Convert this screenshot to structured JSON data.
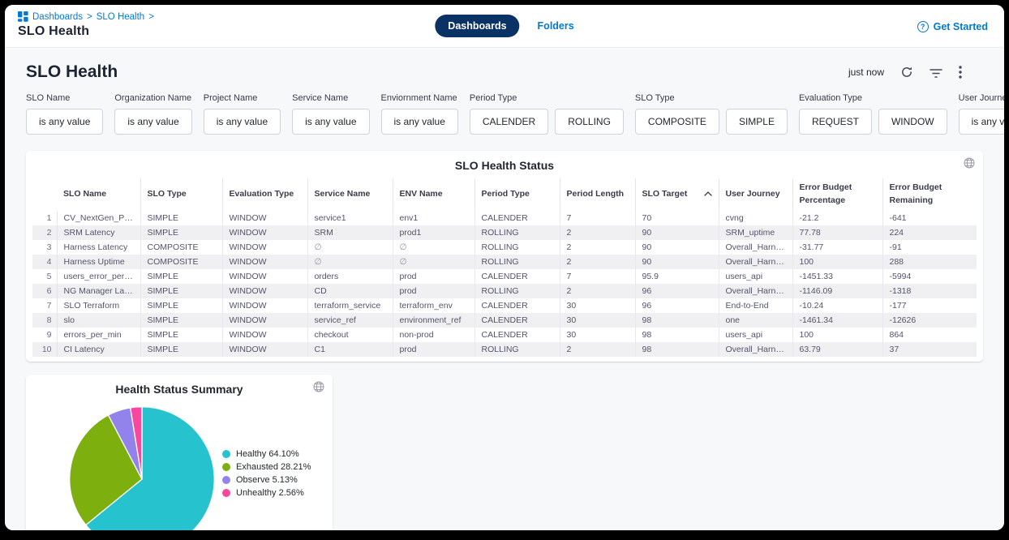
{
  "header": {
    "breadcrumb": {
      "items": [
        "Dashboards",
        "SLO Health"
      ],
      "separator": ">"
    },
    "page_title": "SLO Health",
    "tabs": [
      {
        "label": "Dashboards",
        "active": true
      },
      {
        "label": "Folders",
        "active": false
      }
    ],
    "get_started_label": "Get Started"
  },
  "toolbar": {
    "title": "SLO Health",
    "updated": "just now",
    "icons": [
      "refresh-icon",
      "filter-icon",
      "kebab-menu-icon"
    ]
  },
  "filters": [
    {
      "label": "SLO Name",
      "buttons": [
        "is any value"
      ]
    },
    {
      "label": "Organization Name",
      "buttons": [
        "is any value"
      ]
    },
    {
      "label": "Project Name",
      "buttons": [
        "is any value"
      ]
    },
    {
      "label": "Service Name",
      "buttons": [
        "is any value"
      ]
    },
    {
      "label": "Enviornment Name",
      "buttons": [
        "is any value"
      ]
    },
    {
      "label": "Period Type",
      "buttons": [
        "CALENDER",
        "ROLLING"
      ]
    },
    {
      "label": "SLO Type",
      "buttons": [
        "COMPOSITE",
        "SIMPLE"
      ]
    },
    {
      "label": "Evaluation Type",
      "buttons": [
        "REQUEST",
        "WINDOW"
      ]
    },
    {
      "label": "User Journey",
      "buttons": [
        "is any value"
      ]
    }
  ],
  "table": {
    "title": "SLO Health Status",
    "columns": [
      "SLO Name",
      "SLO Type",
      "Evaluation Type",
      "Service Name",
      "ENV Name",
      "Period Type",
      "Period Length",
      "SLO Target",
      "User Journey",
      "Error Budget Percentage",
      "Error Budget Remaining"
    ],
    "sort_column": "SLO Target",
    "sort_direction": "ascending",
    "null_symbol": "∅",
    "rows": [
      {
        "n": "1",
        "cells": [
          "CV_NextGen_Prod",
          "SIMPLE",
          "WINDOW",
          "service1",
          "env1",
          "CALENDER",
          "7",
          "70",
          "cvng",
          "-21.2",
          "-641"
        ]
      },
      {
        "n": "2",
        "cells": [
          "SRM Latency",
          "SIMPLE",
          "WINDOW",
          "SRM",
          "prod1",
          "ROLLING",
          "2",
          "90",
          "SRM_uptime",
          "77.78",
          "224"
        ]
      },
      {
        "n": "3",
        "cells": [
          "Harness Latency",
          "COMPOSITE",
          "WINDOW",
          "∅",
          "∅",
          "ROLLING",
          "2",
          "90",
          "Overall_Harness",
          "-31.77",
          "-91"
        ]
      },
      {
        "n": "4",
        "cells": [
          "Harness Uptime",
          "COMPOSITE",
          "WINDOW",
          "∅",
          "∅",
          "ROLLING",
          "2",
          "90",
          "Overall_Harness",
          "100",
          "288"
        ]
      },
      {
        "n": "5",
        "cells": [
          "users_error_per_min",
          "SIMPLE",
          "WINDOW",
          "orders",
          "prod",
          "CALENDER",
          "7",
          "95.9",
          "users_api",
          "-1451.33",
          "-5994"
        ]
      },
      {
        "n": "6",
        "cells": [
          "NG Manager Latency",
          "SIMPLE",
          "WINDOW",
          "CD",
          "prod",
          "ROLLING",
          "2",
          "96",
          "Overall_Harness",
          "-1146.09",
          "-1318"
        ]
      },
      {
        "n": "7",
        "cells": [
          "SLO Terraform",
          "SIMPLE",
          "WINDOW",
          "terraform_service",
          "terraform_env",
          "CALENDER",
          "30",
          "96",
          "End-to-End",
          "-10.24",
          "-177"
        ]
      },
      {
        "n": "8",
        "cells": [
          "slo",
          "SIMPLE",
          "WINDOW",
          "service_ref",
          "environment_ref",
          "CALENDER",
          "30",
          "98",
          "one",
          "-1461.34",
          "-12626"
        ]
      },
      {
        "n": "9",
        "cells": [
          "errors_per_min",
          "SIMPLE",
          "WINDOW",
          "checkout",
          "non-prod",
          "CALENDER",
          "30",
          "98",
          "users_api",
          "100",
          "864"
        ]
      },
      {
        "n": "10",
        "cells": [
          "CI Latency",
          "SIMPLE",
          "WINDOW",
          "C1",
          "prod",
          "ROLLING",
          "2",
          "98",
          "Overall_Harness",
          "63.79",
          "37"
        ]
      }
    ]
  },
  "chart_data": {
    "type": "pie",
    "title": "Health Status Summary",
    "labels": [
      "Healthy",
      "Exhausted",
      "Observe",
      "Unhealthy"
    ],
    "values": [
      64.1,
      28.21,
      5.13,
      2.56
    ],
    "colors": [
      "#26c2ce",
      "#7db00e",
      "#9283ec",
      "#f9479f"
    ],
    "legend_labels": [
      "Healthy 64.10%",
      "Exhausted 28.21%",
      "Observe 5.13%",
      "Unhealthy 2.56%"
    ],
    "legend_position": "right",
    "start_angle_deg": 0,
    "direction": "clockwise"
  },
  "colors": {
    "accent_blue": "#0278d5",
    "tab_pill_navy": "#0a3264",
    "content_bg": "#f7f8fa",
    "heading": "#1c2333"
  }
}
